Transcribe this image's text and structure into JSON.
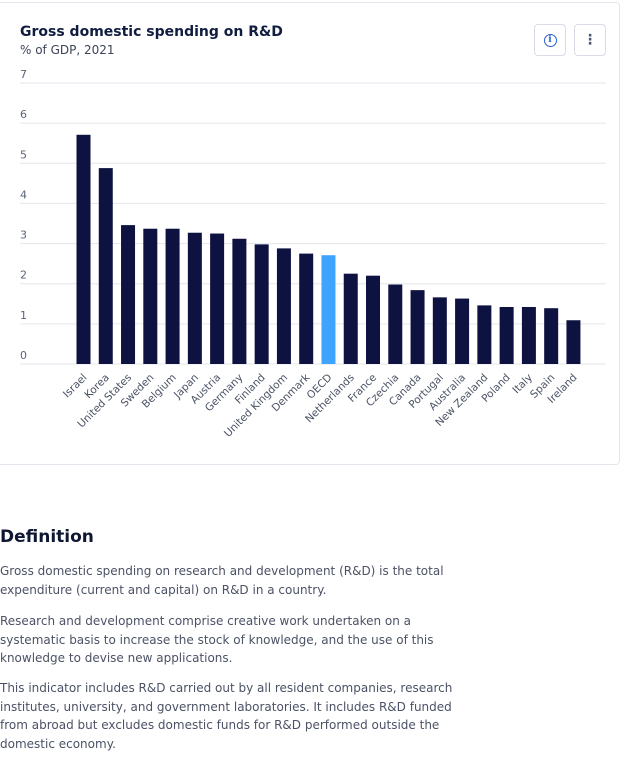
{
  "chart_card": {
    "title": "Gross domestic spending on R&D",
    "subtitle": "% of GDP, 2021",
    "info_icon": "info-circle-icon",
    "more_icon": "vertical-ellipsis-icon"
  },
  "chart_data": {
    "type": "bar",
    "title": "Gross domestic spending on R&D",
    "subtitle": "% of GDP, 2021",
    "xlabel": "",
    "ylabel": "",
    "ylim": [
      0,
      7
    ],
    "yticks": [
      "0",
      "1",
      "2",
      "3",
      "4",
      "5",
      "6",
      "7"
    ],
    "grid": true,
    "categories": [
      "Israel",
      "Korea",
      "United States",
      "Sweden",
      "Belgium",
      "Japan",
      "Austria",
      "Germany",
      "Finland",
      "United Kingdom",
      "Denmark",
      "OECD",
      "Netherlands",
      "France",
      "Czechia",
      "Canada",
      "Portugal",
      "Australia",
      "New Zealand",
      "Poland",
      "Italy",
      "Spain",
      "Ireland"
    ],
    "values": [
      5.71,
      4.88,
      3.46,
      3.37,
      3.37,
      3.27,
      3.25,
      3.12,
      2.98,
      2.88,
      2.75,
      2.71,
      2.25,
      2.2,
      1.98,
      1.84,
      1.66,
      1.63,
      1.46,
      1.42,
      1.42,
      1.39,
      1.09
    ],
    "highlight": "OECD",
    "colors": {
      "bar": "#0d1240",
      "highlight": "#3ea4ff",
      "grid": "#e3e6ec"
    }
  },
  "definition": {
    "heading": "Definition",
    "paragraphs": [
      "Gross domestic spending on research and development (R&D) is the total expenditure (current and capital) on R&D in a country.",
      "Research and development comprise creative work undertaken on a systematic basis to increase the stock of knowledge, and the use of this knowledge to devise new applications.",
      "This indicator includes R&D carried out by all resident companies, research institutes, university, and government laboratories. It includes R&D funded from abroad but excludes domestic funds for R&D performed outside the domestic economy."
    ]
  }
}
